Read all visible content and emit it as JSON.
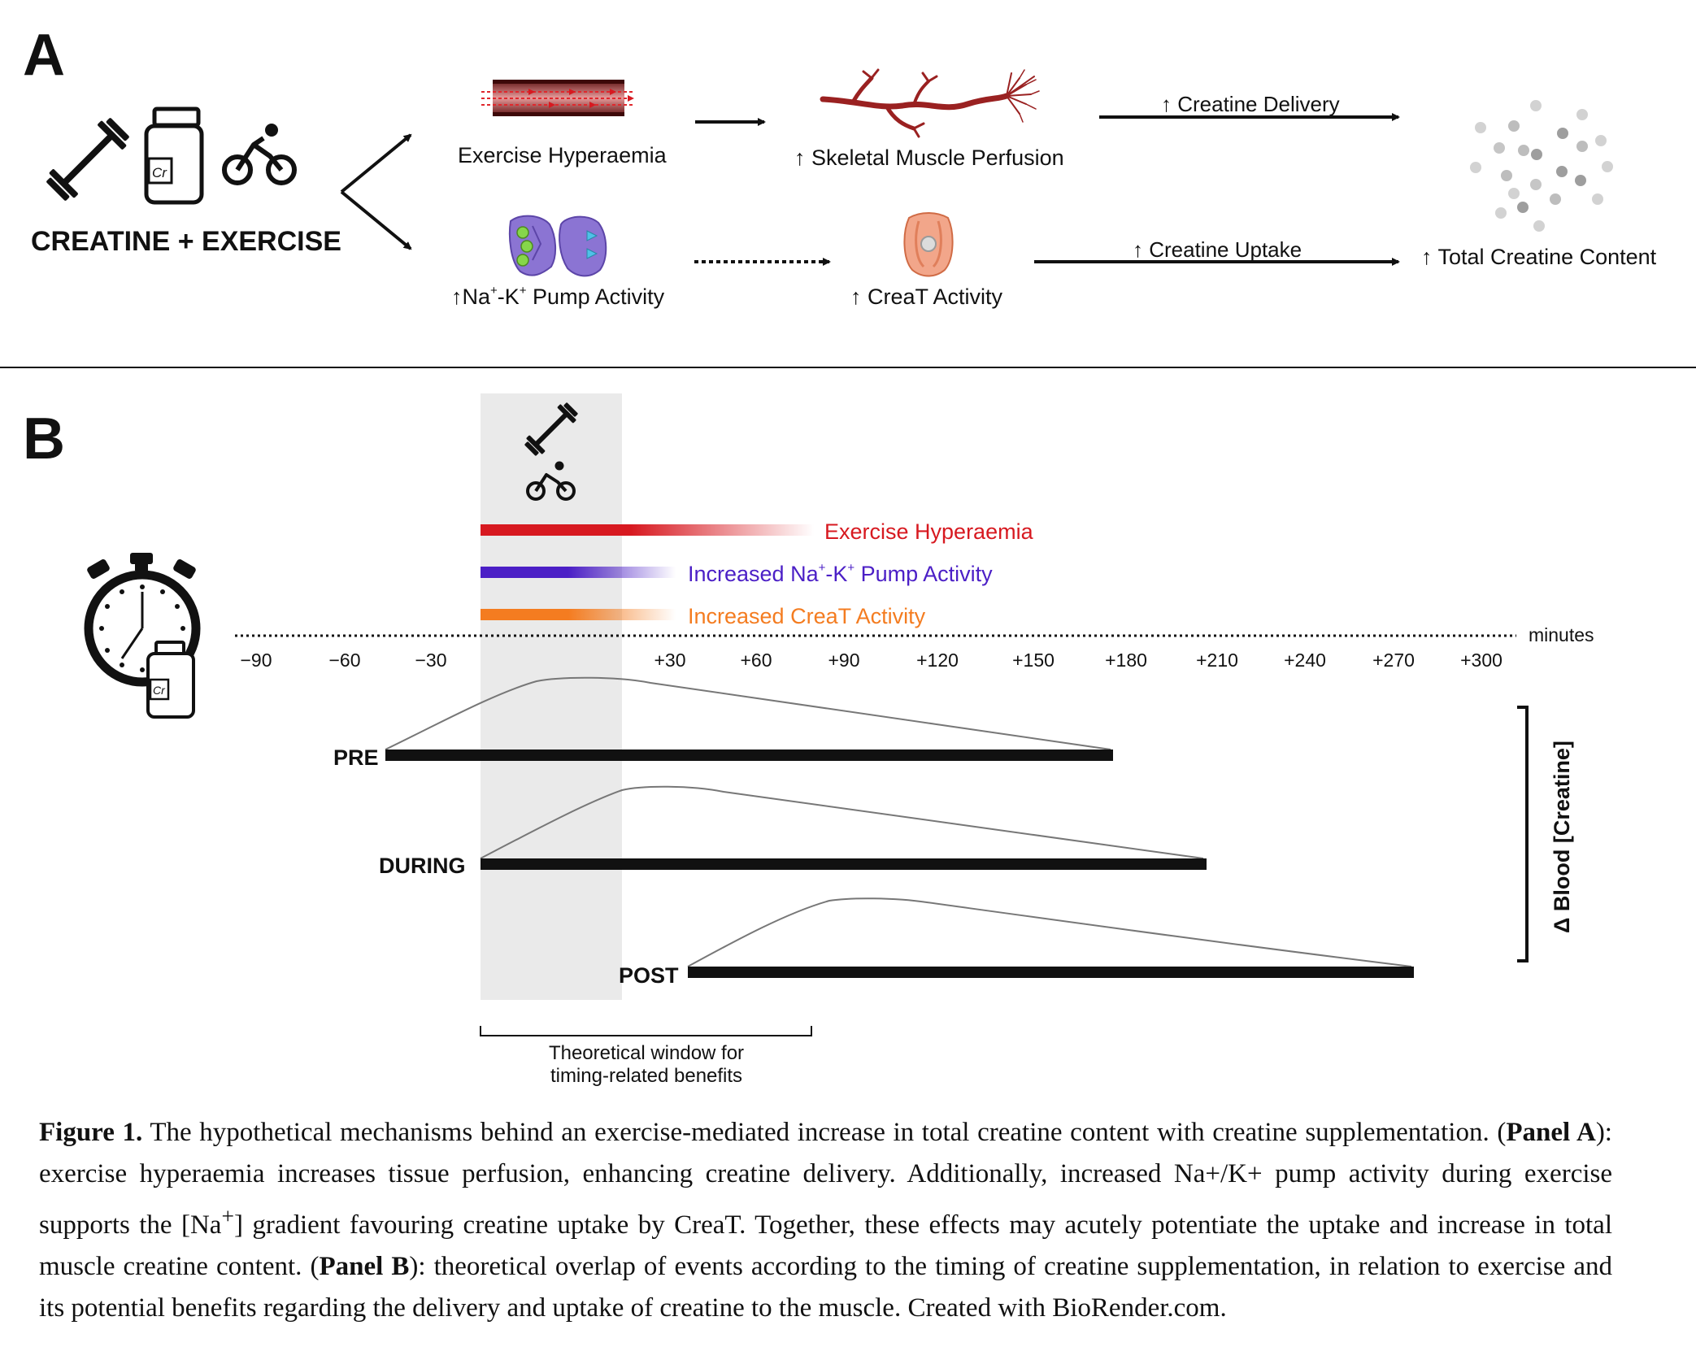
{
  "panel_a": {
    "label": "A",
    "creatine_exercise": "CREATINE + EXERCISE",
    "cr_label": "Cr",
    "exercise_hyperaemia": "Exercise Hyperaemia",
    "skeletal_perfusion": "↑ Skeletal Muscle Perfusion",
    "creatine_delivery": "↑ Creatine Delivery",
    "pump_activity_prefix": "↑Na",
    "pump_activity_sup1": "+",
    "pump_activity_mid": "-K",
    "pump_activity_sup2": "+",
    "pump_activity_suffix": " Pump Activity",
    "creat_activity": "↑ CreaT Activity",
    "creatine_uptake": "↑ Creatine Uptake",
    "total_creatine": "↑ Total Creatine Content"
  },
  "panel_b": {
    "label": "B",
    "legend": {
      "hyperaemia": "Exercise Hyperaemia",
      "pump_prefix": "Increased Na",
      "pump_sup1": "+",
      "pump_mid": "-K",
      "pump_sup2": "+",
      "pump_suffix": " Pump Activity",
      "creat": "Increased CreaT Activity"
    },
    "axis_unit": "minutes",
    "ticks": [
      "−90",
      "−60",
      "−30",
      "+30",
      "+60",
      "+90",
      "+120",
      "+150",
      "+180",
      "+210",
      "+240",
      "+270",
      "+300"
    ],
    "rows": {
      "pre": "PRE",
      "during": "DURING",
      "post": "POST"
    },
    "y_label": "Δ Blood [Creatine]",
    "window_line1": "Theoretical window for",
    "window_line2": "timing-related benefits",
    "cr_label": "Cr"
  },
  "colors": {
    "hyperaemia": "#d71920",
    "pump": "#4b1fc6",
    "creat": "#f47c20"
  },
  "caption": {
    "fig_label": "Figure 1.",
    "p1": " The hypothetical mechanisms behind an exercise-mediated increase in total creatine content with creatine supplementation. (",
    "panel_a": "Panel A",
    "p2": "): exercise hyperaemia increases tissue perfusion, enhancing creatine delivery. Additionally, increased Na+/K+ pump activity during exercise supports the [Na",
    "sup": "+",
    "p3": "] gradient favouring creatine uptake by CreaT. Together, these effects may acutely potentiate the uptake and increase in total muscle creatine content. (",
    "panel_b": "Panel B",
    "p4": "): theoretical overlap of events according to the timing of creatine supplementation, in relation to exercise and its potential benefits regarding the delivery and uptake of creatine to the muscle. Created with BioRender.com."
  }
}
